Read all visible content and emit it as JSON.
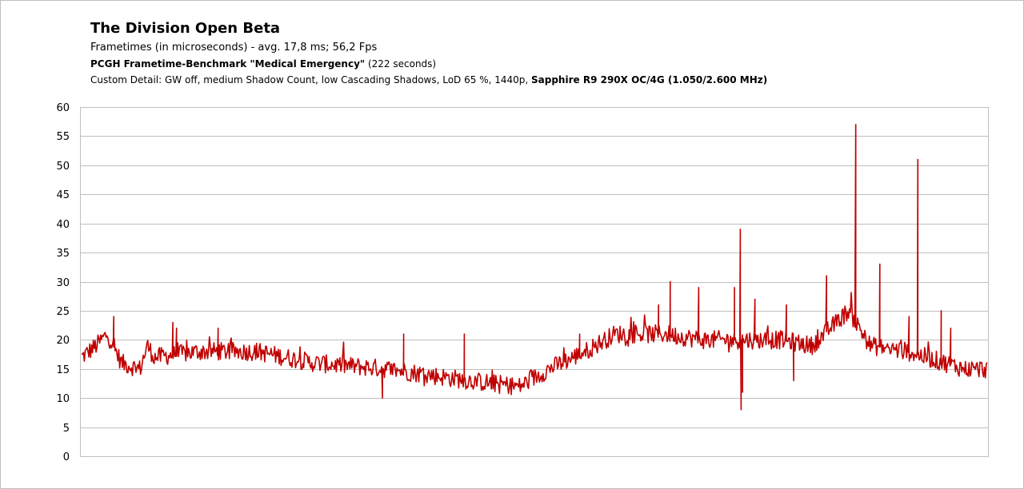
{
  "chart_data": {
    "type": "line",
    "title": "The Division Open Beta",
    "subtitle": {
      "line1": "Frametimes (in microseconds)  - avg. 17,8 ms; 56,2 Fps",
      "line2_bold": "PCGH Frametime-Benchmark \"Medical Emergency\"",
      "line2_rest": " (222 seconds)",
      "line3_prefix": "Custom Detail: GW off, medium Shadow Count,  low Cascading Shadows, LoD 65 %, 1440p, ",
      "line3_bold": "Sapphire R9 290X OC/4G (1.050/2.600 MHz)"
    },
    "ylim": [
      0,
      60
    ],
    "yticks": [
      "0",
      "5",
      "10",
      "15",
      "20",
      "25",
      "30",
      "35",
      "40",
      "45",
      "50",
      "55",
      "60"
    ],
    "grid": true,
    "legend": "none",
    "x_samples": 1000,
    "series": [
      {
        "color": "#c00000",
        "baseline": [
          [
            0,
            17
          ],
          [
            20,
            19
          ],
          [
            35,
            21
          ],
          [
            55,
            16
          ],
          [
            80,
            15
          ],
          [
            90,
            19
          ],
          [
            100,
            17
          ],
          [
            160,
            18
          ],
          [
            240,
            18
          ],
          [
            320,
            16
          ],
          [
            420,
            15
          ],
          [
            530,
            13
          ],
          [
            600,
            12
          ],
          [
            640,
            15
          ],
          [
            690,
            18
          ],
          [
            730,
            21
          ],
          [
            800,
            21
          ],
          [
            850,
            20
          ],
          [
            960,
            20
          ],
          [
            1000,
            19
          ],
          [
            1050,
            25
          ],
          [
            1080,
            19
          ],
          [
            1130,
            18
          ],
          [
            1210,
            15
          ],
          [
            1240,
            15
          ]
        ],
        "spikes": [
          [
            44,
            24
          ],
          [
            125,
            23
          ],
          [
            130,
            22
          ],
          [
            187,
            22
          ],
          [
            412,
            10
          ],
          [
            441,
            21
          ],
          [
            524,
            21
          ],
          [
            682,
            21
          ],
          [
            790,
            26
          ],
          [
            806,
            30
          ],
          [
            845,
            29
          ],
          [
            894,
            29
          ],
          [
            902,
            39
          ],
          [
            903,
            8
          ],
          [
            905,
            11
          ],
          [
            922,
            27
          ],
          [
            965,
            26
          ],
          [
            975,
            13
          ],
          [
            1020,
            31
          ],
          [
            1060,
            57
          ],
          [
            1093,
            33
          ],
          [
            1133,
            24
          ],
          [
            1145,
            51
          ],
          [
            1177,
            25
          ],
          [
            1190,
            22
          ]
        ]
      }
    ]
  }
}
